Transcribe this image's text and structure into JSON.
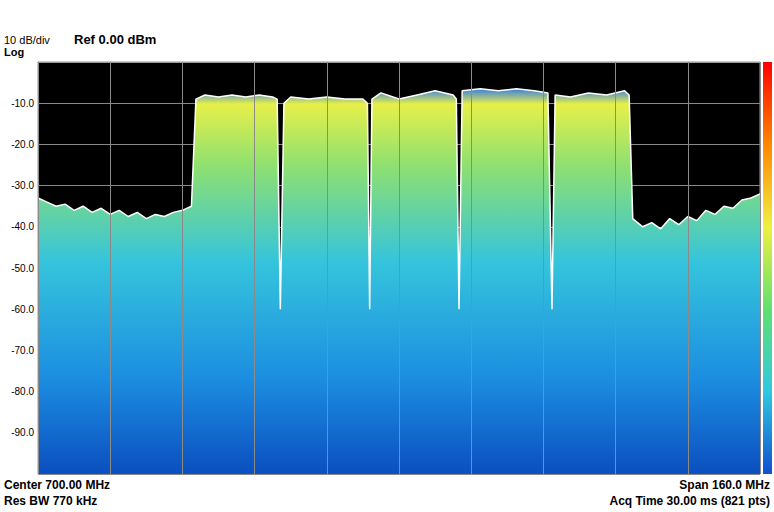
{
  "chart_data": {
    "type": "line",
    "annotations": [
      "10 dB/div",
      "Log",
      "Ref 0.00 dBm",
      "Center 700.00 MHz",
      "Res BW 770 kHz",
      "Span 160.0 MHz",
      "Acq Time 30.00 ms (821 pts)"
    ],
    "x": [
      620,
      622,
      624,
      626,
      628,
      630,
      632,
      634,
      636,
      638,
      640,
      642,
      644,
      646,
      648,
      650,
      652,
      654,
      655,
      657,
      660,
      663,
      666,
      669,
      672,
      673,
      673.7,
      674.5,
      676,
      680,
      684,
      688,
      692,
      693,
      693.5,
      694,
      696,
      700,
      704,
      708,
      712,
      712.7,
      713.3,
      714,
      718,
      722,
      726,
      730,
      733,
      733.9,
      734.6,
      738,
      742,
      746,
      750,
      751,
      751.8,
      754,
      756,
      758,
      760,
      762,
      764,
      766,
      768,
      770,
      772,
      774,
      776,
      778,
      780
    ],
    "values": [
      -33,
      -34,
      -35,
      -34.5,
      -36,
      -35,
      -36.5,
      -35.5,
      -37,
      -36,
      -37.5,
      -36.5,
      -38,
      -37,
      -37.5,
      -36.5,
      -36,
      -35,
      -9,
      -8,
      -8.5,
      -8,
      -8.5,
      -8,
      -8.5,
      -9,
      -60,
      -10,
      -8.5,
      -9,
      -8.5,
      -9,
      -9,
      -10,
      -60,
      -9,
      -7.5,
      -9,
      -8,
      -7,
      -8,
      -9,
      -60,
      -7,
      -6.5,
      -7,
      -6.5,
      -7,
      -7.5,
      -60,
      -8,
      -8.5,
      -7.5,
      -8,
      -7,
      -8,
      -38,
      -40,
      -39,
      -40.5,
      -38,
      -39.5,
      -37.5,
      -38.5,
      -36,
      -37,
      -35,
      -35.5,
      -33.5,
      -33,
      -32
    ],
    "color": "#ffffff",
    "xlim": [
      620,
      780
    ],
    "xticks": [
      620,
      636,
      652,
      668,
      684,
      700,
      716,
      732,
      748,
      764,
      780
    ],
    "ylim": [
      -100,
      0
    ],
    "yticks": [
      {
        "value": -90,
        "label": "-90.0"
      },
      {
        "value": -80,
        "label": "-80.0"
      },
      {
        "value": -70,
        "label": "-70.0"
      },
      {
        "value": -60,
        "label": "-60.0"
      },
      {
        "value": -50,
        "label": "-50.0"
      },
      {
        "value": -40,
        "label": "-40.0"
      },
      {
        "value": -30,
        "label": "-30.0"
      },
      {
        "value": -20,
        "label": "-20.0"
      },
      {
        "value": -10,
        "label": "-10.0"
      }
    ],
    "grid": true,
    "tick_labels": "y"
  }
}
